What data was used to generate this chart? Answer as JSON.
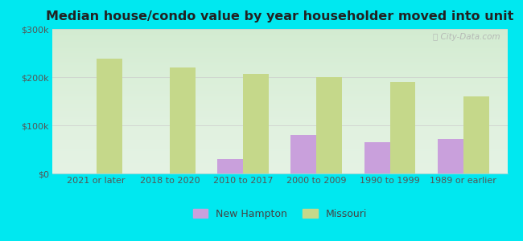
{
  "title": "Median house/condo value by year householder moved into unit",
  "categories": [
    "2021 or later",
    "2018 to 2020",
    "2010 to 2017",
    "2000 to 2009",
    "1990 to 1999",
    "1989 or earlier"
  ],
  "new_hampton": [
    0,
    0,
    30000,
    80000,
    65000,
    72000
  ],
  "missouri": [
    238000,
    220000,
    207000,
    200000,
    190000,
    160000
  ],
  "new_hampton_color": "#c9a0dc",
  "missouri_color": "#c5d88a",
  "background_outer": "#00e8f0",
  "background_inner": "#e8f5e8",
  "ylim": [
    0,
    300000
  ],
  "yticks": [
    0,
    100000,
    200000,
    300000
  ],
  "ytick_labels": [
    "$0",
    "$100k",
    "$200k",
    "$300k"
  ],
  "watermark": "City-Data.com",
  "legend_new_hampton": "New Hampton",
  "legend_missouri": "Missouri",
  "bar_width": 0.35
}
